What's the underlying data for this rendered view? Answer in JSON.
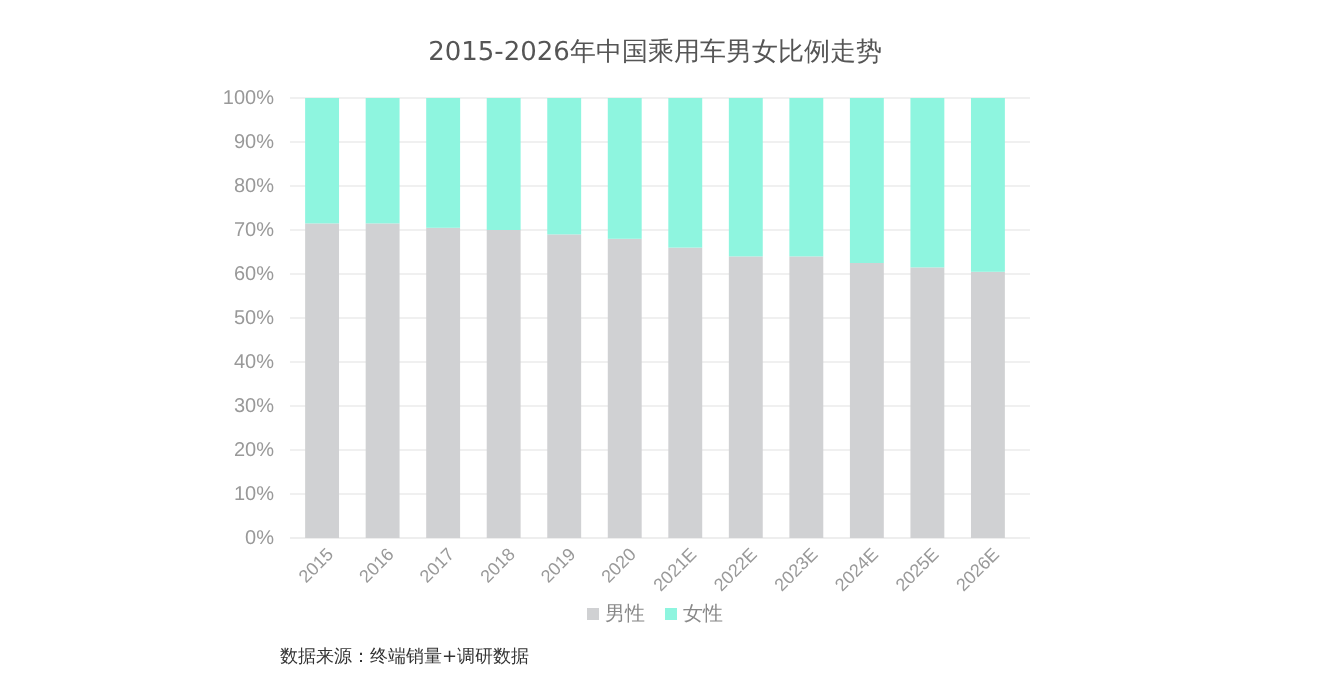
{
  "chart_data": {
    "type": "bar",
    "title": "2015-2026年中国乘用车男女比例走势",
    "categories": [
      "2015",
      "2016",
      "2017",
      "2018",
      "2019",
      "2020",
      "2021E",
      "2022E",
      "2023E",
      "2024E",
      "2025E",
      "2026E"
    ],
    "stacked": true,
    "series": [
      {
        "name": "男性",
        "color": "#d0d1d3",
        "values": [
          71.5,
          71.5,
          70.5,
          70,
          69,
          68,
          66,
          64,
          64,
          62.5,
          61.5,
          60.5
        ]
      },
      {
        "name": "女性",
        "color": "#8ef5df",
        "values": [
          28.5,
          28.5,
          29.5,
          30,
          31,
          32,
          34,
          36,
          36,
          37.5,
          38.5,
          39.5
        ]
      }
    ],
    "ylim": [
      0,
      100
    ],
    "yticks": [
      {
        "value": 0,
        "label": "0%"
      },
      {
        "value": 10,
        "label": "10%"
      },
      {
        "value": 20,
        "label": "20%"
      },
      {
        "value": 30,
        "label": "30%"
      },
      {
        "value": 40,
        "label": "40%"
      },
      {
        "value": 50,
        "label": "50%"
      },
      {
        "value": 60,
        "label": "60%"
      },
      {
        "value": 70,
        "label": "70%"
      },
      {
        "value": 80,
        "label": "80%"
      },
      {
        "value": 90,
        "label": "90%"
      },
      {
        "value": 100,
        "label": "100%"
      }
    ],
    "grid": "y",
    "legend": "bottom",
    "annotations": [
      "数据来源：终端销量+调研数据"
    ]
  }
}
